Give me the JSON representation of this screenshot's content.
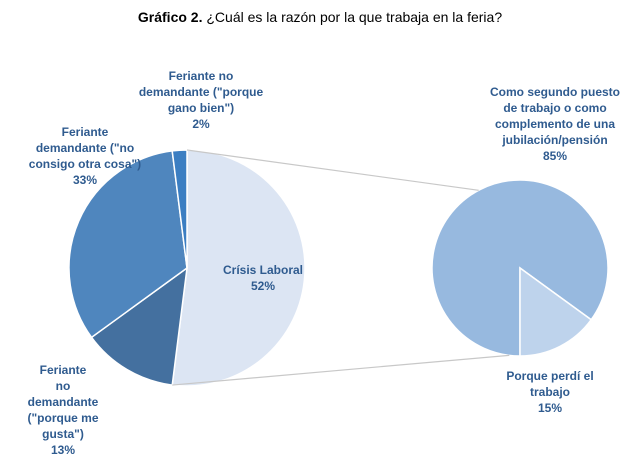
{
  "chart_data": {
    "type": "pie",
    "variant": "bar-of-pie",
    "title_bold": "Gráfico 2.",
    "title_rest": " ¿Cuál es la razón por la que trabaja en la feria?",
    "main_pie": [
      {
        "key": "crisis",
        "lines": [
          "Crísis Laboral"
        ],
        "pct_label": "52%",
        "value": 52,
        "color": "#dce5f3"
      },
      {
        "key": "gusta",
        "lines": [
          "Feriante",
          "no",
          "demandante",
          "(\"porque me",
          "gusta\")"
        ],
        "pct_label": "13%",
        "value": 13,
        "color": "#44709f"
      },
      {
        "key": "consigo",
        "lines": [
          "Feriante",
          "demandante (\"no",
          "consigo otra cosa\")"
        ],
        "pct_label": "33%",
        "value": 33,
        "color": "#4f86be"
      },
      {
        "key": "gano",
        "lines": [
          "Feriante no",
          "demandante (\"porque",
          "gano bien\")"
        ],
        "pct_label": "2%",
        "value": 2,
        "color": "#3b7ec2"
      }
    ],
    "secondary_pie": [
      {
        "key": "segundo",
        "lines": [
          "Como segundo puesto",
          "de trabajo o como",
          "complemento de una",
          "jubilación/pensión"
        ],
        "pct_label": "85%",
        "value": 85,
        "color": "#97b9df"
      },
      {
        "key": "perdi",
        "lines": [
          "Porque perdí el",
          "trabajo"
        ],
        "pct_label": "15%",
        "value": 15,
        "color": "#bed3ec"
      }
    ],
    "connector_color": "#c8c8c8"
  }
}
